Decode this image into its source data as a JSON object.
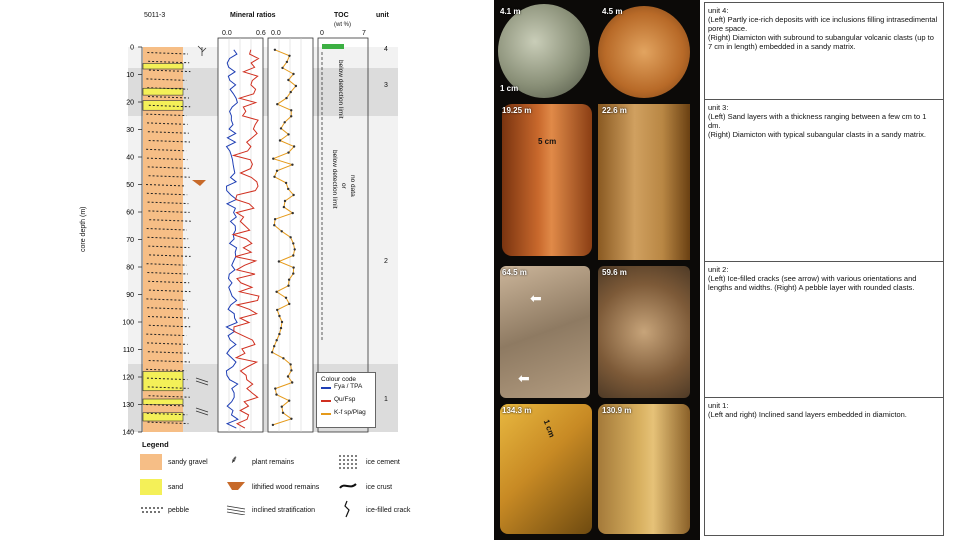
{
  "log": {
    "site": "5011-3",
    "mineral_ratios_title": "Mineral ratios",
    "ratio_ticks_a": [
      "0.0",
      "0.6"
    ],
    "ratio_ticks_b": [
      "0.0"
    ],
    "toc_title": "TOC",
    "toc_unit": "(wt %)",
    "toc_ticks": [
      "0",
      "7"
    ],
    "unit_title": "unit",
    "unit_numbers": [
      "4",
      "3",
      "2",
      "1"
    ],
    "depth_label": "core depth (m)",
    "depth_ticks": [
      "0",
      "10",
      "20",
      "30",
      "40",
      "50",
      "60",
      "70",
      "80",
      "90",
      "100",
      "110",
      "120",
      "130",
      "140"
    ],
    "toc_note_upper": "below detection limit",
    "toc_note_middle_1": "no data",
    "toc_note_middle_2": "or",
    "toc_note_middle_3": "below detection limit",
    "colour_code_title": "Colour code",
    "colour_code": [
      {
        "label": "Fya / TPA",
        "color": "#1f3fb5"
      },
      {
        "label": "Qu/Fsp",
        "color": "#d03020"
      },
      {
        "label": "K-f sp/Plag",
        "color": "#e59a1a"
      }
    ]
  },
  "legend": {
    "title": "Legend",
    "items": [
      {
        "label": "sandy gravel",
        "icon": "orange-swatch"
      },
      {
        "label": "plant remains",
        "icon": "plant-icon"
      },
      {
        "label": "ice cement",
        "icon": "dotted-pattern"
      },
      {
        "label": "sand",
        "icon": "yellow-swatch"
      },
      {
        "label": "lithified wood remains",
        "icon": "wood-icon"
      },
      {
        "label": "ice crust",
        "icon": "ice-crust-icon"
      },
      {
        "label": "pebble",
        "icon": "pebble-icon"
      },
      {
        "label": "inclined stratification",
        "icon": "stratification-icon"
      },
      {
        "label": "ice-filled crack",
        "icon": "crack-icon"
      }
    ]
  },
  "cores": [
    {
      "depth_left": "4.1 m",
      "depth_right": "4.5 m",
      "scale": "1 cm",
      "text": "unit 4:\n(Left) Partly ice-rich deposits with ice inclusions filling intrasedimental pore space.\n(Right) Diamicton with subround to subangular volcanic clasts (up to 7 cm in length) embedded in a sandy matrix."
    },
    {
      "depth_left": "19.25 m",
      "depth_right": "22.6 m",
      "scale": "5 cm",
      "text": "unit 3:\n(Left) Sand layers with a thickness ranging between a few cm to 1 dm.\n(Right) Diamicton with typical subangular clasts in a sandy matrix."
    },
    {
      "depth_left": "64.5 m",
      "depth_right": "59.6 m",
      "scale": "",
      "text": "unit 2:\n(Left) Ice-filled cracks (see arrow) with various orientations and lengths and widths. (Right) A pebble layer with rounded clasts."
    },
    {
      "depth_left": "134.3 m",
      "depth_right": "130.9 m",
      "scale": "1 cm",
      "text": "unit 1:\n(Left and right) Inclined sand layers embedded in diamicton."
    }
  ],
  "colors": {
    "sandy_gravel": "#f6be86",
    "sand": "#f4f058",
    "unit_shade": "#dcdcdc"
  }
}
